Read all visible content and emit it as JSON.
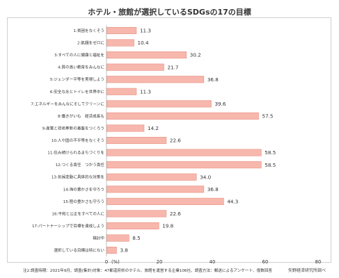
{
  "chart_data": {
    "type": "bar",
    "orientation": "horizontal",
    "title": "ホテル・旅館が選択しているSDGsの17の目標",
    "unit_label": "(%)",
    "categories": [
      "1:貧困をなくそう",
      "2:飢餓をゼロに",
      "3:すべての人に健康と福祉を",
      "4:質の高い教育をみんなに",
      "5:ジェンダー平等を実現しよう",
      "6:安全な水とトイレを世界中に",
      "7:エネルギーをみんなにそしてクリーンに",
      "8:働きがいも　経済成長も",
      "9:産業と技術革新の基盤をつくろう",
      "10:人や国の不平等をなくそう",
      "11:住み続けられるまちづくりを",
      "12:つくる責任　つかう責任",
      "13:気候変動に具体的な対策を",
      "14:海の豊かさを守ろう",
      "15:陸の豊かさも守ろう",
      "16:平和と公正をすべての人に",
      "17:パートナーシップで目標を達成しよう",
      "検討中",
      "選択している目標は特にない"
    ],
    "values": [
      11.3,
      10.4,
      30.2,
      21.7,
      36.8,
      11.3,
      39.6,
      57.5,
      14.2,
      22.6,
      58.5,
      58.5,
      34.0,
      36.8,
      44.3,
      22.6,
      19.8,
      8.5,
      3.8
    ],
    "value_labels": [
      "11.3",
      "10.4",
      "30.2",
      "21.7",
      "36.8",
      "11.3",
      "39.6",
      "57.5",
      "14.2",
      "22.6",
      "58.5",
      "58.5",
      "34.0",
      "36.8",
      "44.3",
      "22.6",
      "19.8",
      "8.5",
      "3.8"
    ],
    "xlim": [
      0,
      80
    ],
    "xticks": [
      0,
      20,
      40,
      60,
      80
    ],
    "xtick_labels": [
      "0",
      "20",
      "40",
      "60",
      "80"
    ],
    "bar_color": "#f7b7ad",
    "bar_border_color": "#e8907f",
    "grid": false,
    "source_note": "矢野経済研究所調べ"
  },
  "footer_note": "注2.調査時期：2021年9月、調査(集計)対象：47都道府県のホテル、旅館を運営する企業106社、調査方法：郵送によるアンケート、復数回答"
}
